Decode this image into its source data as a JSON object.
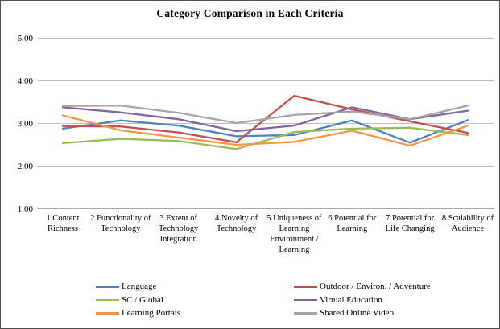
{
  "window": {
    "background": "#FFFFFF",
    "border_color": "#4D4D4D"
  },
  "chart_data": {
    "type": "line",
    "title": "Category Comparison in Each Criteria",
    "categories": [
      "1.Content Richness",
      "2.Functionality of Technology",
      "3.Extent of Technology Integration",
      "4.Novelty of Technology",
      "5.Uniqueness of Learning Environment / Learning",
      "6.Potential for Learning",
      "7.Potential for Life Changing",
      "8.Scalability of Audience"
    ],
    "series": [
      {
        "name": "Language",
        "color": "#4F81BD",
        "values": [
          2.88,
          3.07,
          2.95,
          2.7,
          2.73,
          3.07,
          2.55,
          3.08
        ]
      },
      {
        "name": "Outdoor / Environ. / Adventure",
        "color": "#C0504D",
        "values": [
          2.94,
          2.93,
          2.79,
          2.56,
          3.65,
          3.33,
          3.05,
          2.78
        ]
      },
      {
        "name": "SC / Global",
        "color": "#9BBB59",
        "values": [
          2.54,
          2.64,
          2.59,
          2.4,
          2.8,
          2.88,
          2.9,
          2.73
        ]
      },
      {
        "name": "Virtual Education",
        "color": "#8064A2",
        "values": [
          3.38,
          3.26,
          3.1,
          2.82,
          2.95,
          3.38,
          3.1,
          3.3
        ]
      },
      {
        "name": "Learning Portals",
        "color": "#F79646",
        "values": [
          3.19,
          2.84,
          2.67,
          2.5,
          2.57,
          2.83,
          2.48,
          2.95
        ]
      },
      {
        "name": "Shared Online Video",
        "color": "#A5A5A5",
        "values": [
          3.41,
          3.42,
          3.25,
          3.01,
          3.2,
          3.28,
          3.1,
          3.42
        ]
      }
    ],
    "y_ticks": [
      "5.00",
      "4.00",
      "3.00",
      "2.00",
      "1.00"
    ],
    "y_tick_values": [
      5.0,
      4.0,
      3.0,
      2.0,
      1.0
    ],
    "ylim": [
      1.0,
      5.0
    ],
    "grid": "horizontal",
    "gridline_color": "#BFBFBF",
    "axis_line_color": "#A6A6A6",
    "legend_position": "bottom",
    "legend_columns": 2
  }
}
